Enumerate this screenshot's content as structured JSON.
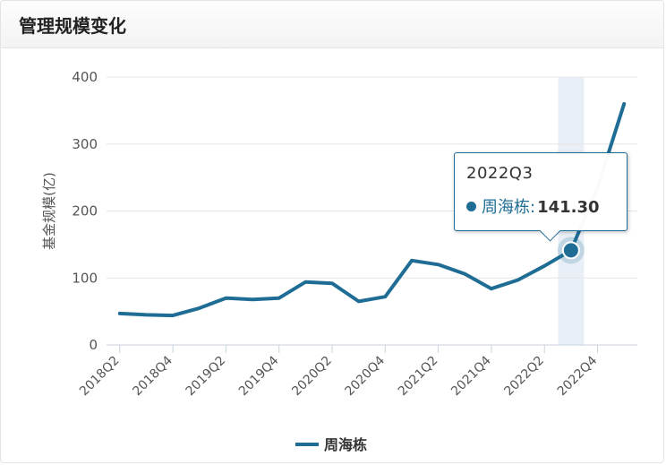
{
  "header": {
    "title": "管理规模变化"
  },
  "chart_data": {
    "type": "line",
    "ylabel": "基金规模(亿)",
    "xlabel": "",
    "ylim": [
      0,
      400
    ],
    "yticks": [
      0,
      100,
      200,
      300,
      400
    ],
    "grid": "horizontal",
    "legend_position": "bottom-center",
    "categories": [
      "2018Q2",
      "2018Q3",
      "2018Q4",
      "2019Q1",
      "2019Q2",
      "2019Q3",
      "2019Q4",
      "2020Q1",
      "2020Q2",
      "2020Q3",
      "2020Q4",
      "2021Q1",
      "2021Q2",
      "2021Q3",
      "2021Q4",
      "2022Q1",
      "2022Q2",
      "2022Q3",
      "2022Q4",
      "2023Q1"
    ],
    "x_tick_labels": [
      "2018Q2",
      "2018Q4",
      "2019Q2",
      "2019Q4",
      "2020Q2",
      "2020Q4",
      "2021Q2",
      "2021Q4",
      "2022Q2",
      "2022Q4"
    ],
    "series": [
      {
        "name": "周海栋",
        "color": "#1f6d95",
        "values": [
          47,
          45,
          44,
          55,
          70,
          68,
          70,
          94,
          92,
          65,
          72,
          126,
          120,
          106,
          84,
          97,
          118,
          141.3,
          235,
          360
        ]
      }
    ],
    "highlight": {
      "category": "2022Q3",
      "series": "周海栋",
      "value": "141.30"
    }
  },
  "tooltip": {
    "title": "2022Q3",
    "name": "周海栋:",
    "value": "141.30"
  },
  "colors": {
    "accent": "#1f6d95",
    "grid": "#e6e6e6",
    "axis": "#c8d2dc",
    "highlight_band": "#e9eff6"
  }
}
